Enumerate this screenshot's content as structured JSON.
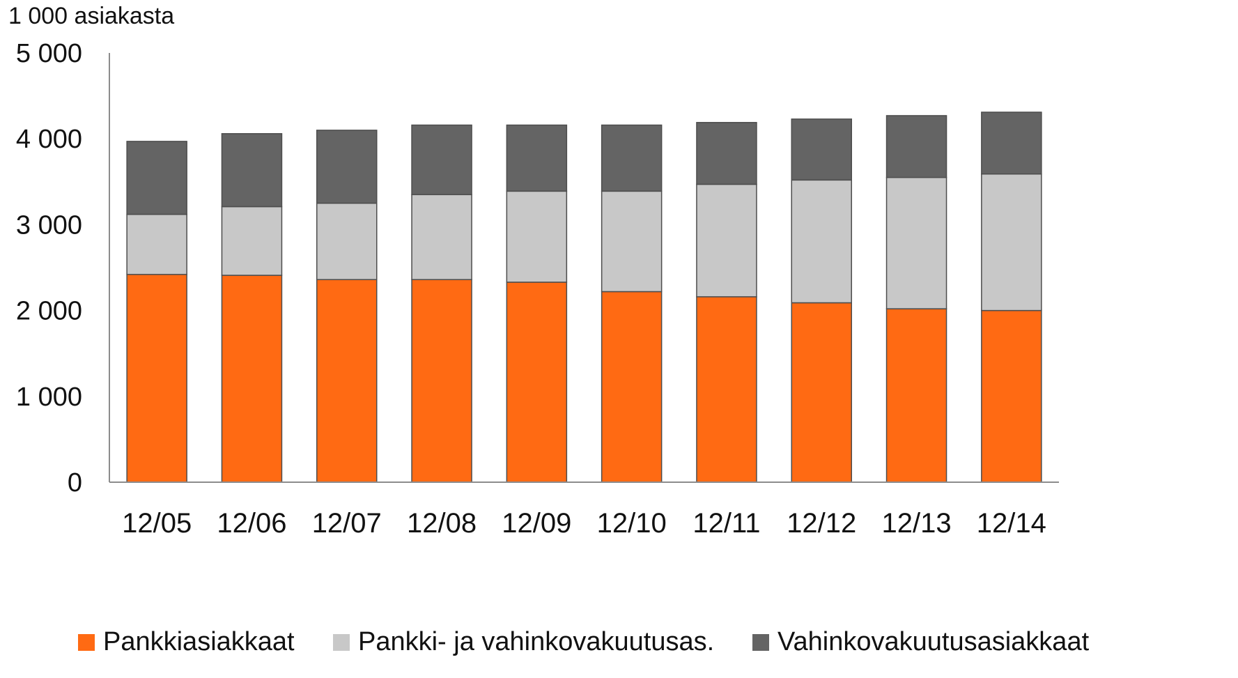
{
  "chart_data": {
    "type": "bar",
    "stacked": true,
    "ylabel": "1 000 asiakasta",
    "ylim": [
      0,
      5000
    ],
    "yticks": [
      "0",
      "1 000",
      "2 000",
      "3 000",
      "4 000",
      "5 000"
    ],
    "ytick_values": [
      0,
      1000,
      2000,
      3000,
      4000,
      5000
    ],
    "grid": false,
    "legend_position": "bottom",
    "categories": [
      "12/05",
      "12/06",
      "12/07",
      "12/08",
      "12/09",
      "12/10",
      "12/11",
      "12/12",
      "12/13",
      "12/14"
    ],
    "series": [
      {
        "name": "Pankkiasiakkaat",
        "color": "#ff6a13",
        "values": [
          2420,
          2410,
          2360,
          2360,
          2330,
          2220,
          2160,
          2090,
          2020,
          2000
        ]
      },
      {
        "name": "Pankki- ja vahinkovakuutusas.",
        "color": "#c8c8c8",
        "values": [
          700,
          800,
          890,
          990,
          1060,
          1170,
          1310,
          1430,
          1530,
          1590
        ]
      },
      {
        "name": "Vahinkovakuutusasiakkaat",
        "color": "#646464",
        "values": [
          850,
          850,
          850,
          810,
          770,
          770,
          720,
          710,
          720,
          720
        ]
      }
    ]
  }
}
